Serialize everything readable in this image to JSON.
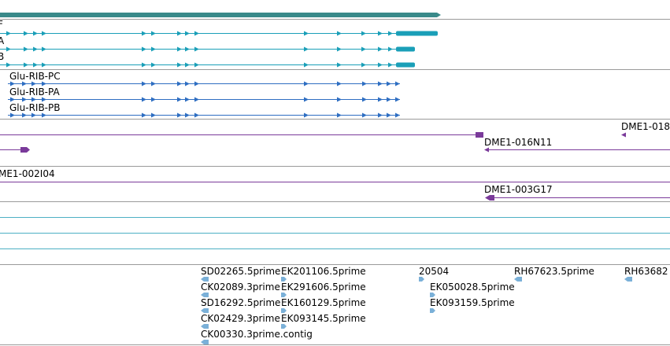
{
  "colors": {
    "divider": "#9a9a9a",
    "gene_bar": "#3a8a8a",
    "mrna": "#1a9fb8",
    "rna_feature": "#2e6ec2",
    "cdna": "#7a3a9a",
    "est_line": "#4db0c4",
    "est_arrow": "#7ab0d8"
  },
  "transcript_labels": [
    "F",
    "A",
    "B"
  ],
  "rna_labels": [
    "Glu-RIB-PC",
    "Glu-RIB-PA",
    "Glu-RIB-PB"
  ],
  "cdna_labels": {
    "row1_right": "DME1-018",
    "row2": "DME1-016N11",
    "row3": "ME1-002I04",
    "row4": "DME1-003G17"
  },
  "est_labels": {
    "col1": [
      "SD02265.5prime",
      "CK02089.3prime",
      "SD16292.5prime",
      "CK02429.3prime",
      "CK00330.3prime.contig"
    ],
    "col2": [
      "EK201106.5prime",
      "EK291606.5prime",
      "EK160129.5prime",
      "EK093145.5prime"
    ],
    "col3": [
      "20504",
      "EK050028.5prime",
      "EK093159.5prime"
    ],
    "col4": [
      "RH67623.5prime"
    ],
    "col5": [
      "RH63682"
    ]
  }
}
